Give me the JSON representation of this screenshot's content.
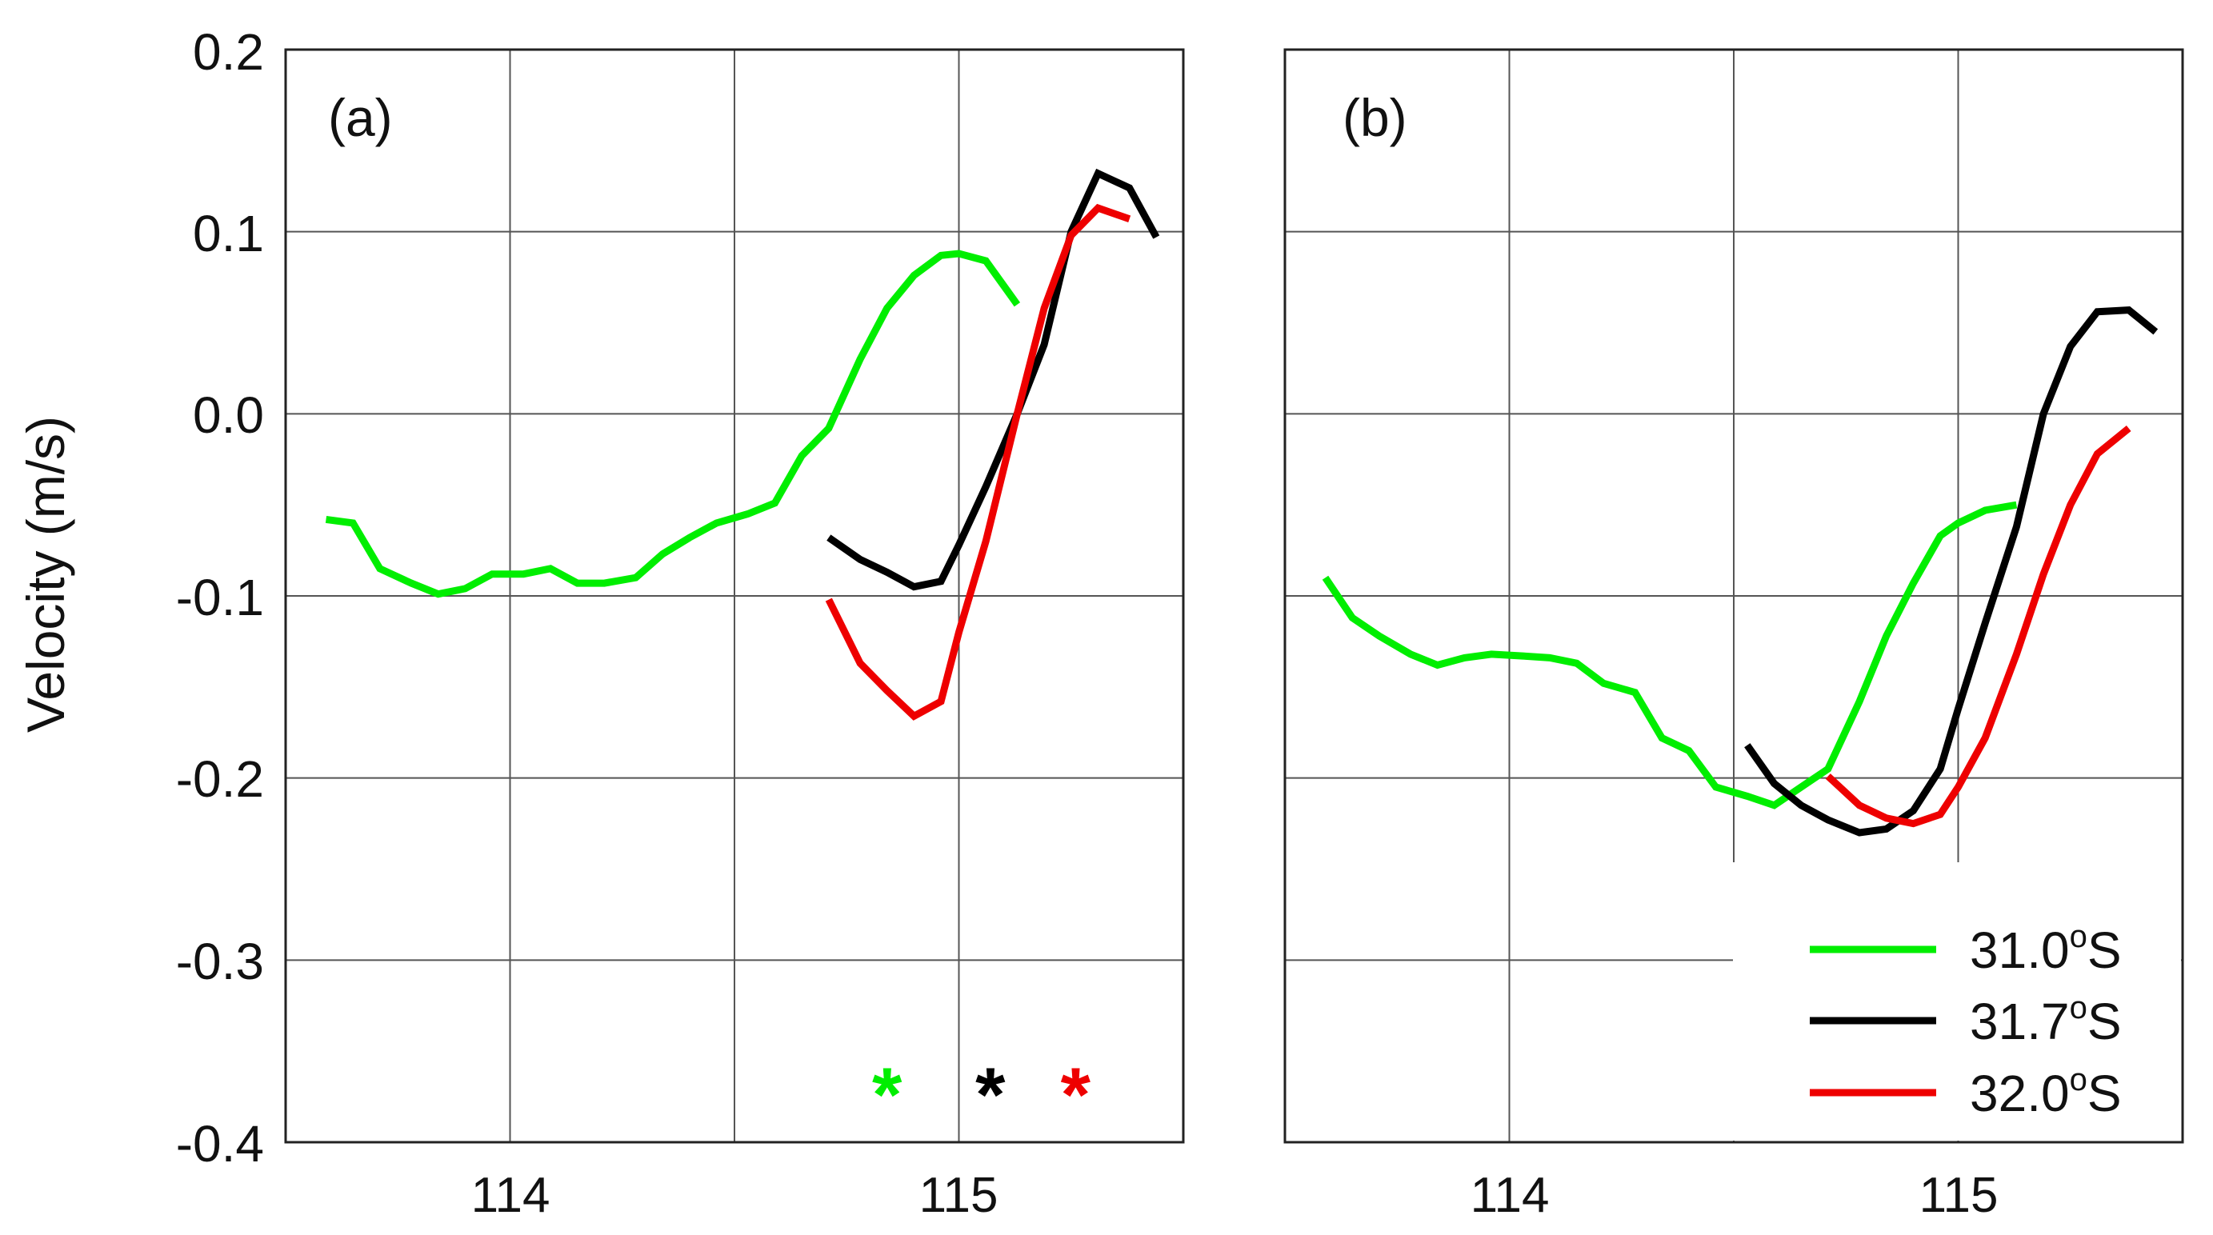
{
  "figure": {
    "ylabel": "Velocity (m/s)",
    "y_ticks": [
      "0.2",
      "0.1",
      "0.0",
      "-0.1",
      "-0.2",
      "-0.3",
      "-0.4"
    ],
    "legend": {
      "placement": "bottom-right of panel (b)",
      "entries": [
        {
          "label_main": "31.0",
          "label_sup": "o",
          "label_end": "S",
          "color": "#00ee00"
        },
        {
          "label_main": "31.7",
          "label_sup": "o",
          "label_end": "S",
          "color": "#000000"
        },
        {
          "label_main": "32.0",
          "label_sup": "o",
          "label_end": "S",
          "color": "#ee0000"
        }
      ]
    }
  },
  "chart_data": [
    {
      "type": "line",
      "panel_label": "(a)",
      "xlim": [
        113.5,
        115.5
      ],
      "ylim": [
        -0.4,
        0.2
      ],
      "x_ticks": [
        114,
        115
      ],
      "x_tick_labels": [
        "114",
        "115"
      ],
      "y_ticks": [
        0.2,
        0.1,
        0.0,
        -0.1,
        -0.2,
        -0.3,
        -0.4
      ],
      "grid": true,
      "series": [
        {
          "name": "31.0oS",
          "color": "#00ee00",
          "x": [
            113.59,
            113.65,
            113.71,
            113.78,
            113.84,
            113.9,
            113.96,
            114.03,
            114.09,
            114.15,
            114.21,
            114.28,
            114.34,
            114.4,
            114.46,
            114.53,
            114.59,
            114.65,
            114.71,
            114.78,
            114.84,
            114.9,
            114.96,
            115.0,
            115.06,
            115.13
          ],
          "y": [
            -0.058,
            -0.06,
            -0.085,
            -0.093,
            -0.099,
            -0.096,
            -0.088,
            -0.088,
            -0.085,
            -0.093,
            -0.093,
            -0.09,
            -0.077,
            -0.068,
            -0.06,
            -0.055,
            -0.049,
            -0.023,
            -0.008,
            0.03,
            0.058,
            0.076,
            0.087,
            0.088,
            0.084,
            0.06
          ]
        },
        {
          "name": "31.7oS",
          "color": "#000000",
          "x": [
            114.71,
            114.78,
            114.84,
            114.9,
            114.96,
            115.0,
            115.06,
            115.13,
            115.19,
            115.25,
            115.31,
            115.38,
            115.44
          ],
          "y": [
            -0.068,
            -0.08,
            -0.087,
            -0.095,
            -0.092,
            -0.072,
            -0.04,
            0.0,
            0.038,
            0.1,
            0.132,
            0.124,
            0.097
          ]
        },
        {
          "name": "32.0oS",
          "color": "#ee0000",
          "x": [
            114.71,
            114.78,
            114.84,
            114.9,
            114.96,
            115.0,
            115.06,
            115.13,
            115.19,
            115.25,
            115.31,
            115.38
          ],
          "y": [
            -0.102,
            -0.137,
            -0.152,
            -0.166,
            -0.158,
            -0.12,
            -0.07,
            0.0,
            0.058,
            0.098,
            0.113,
            0.107
          ]
        }
      ],
      "markers": [
        {
          "symbol": "*",
          "x": 114.84,
          "y": -0.37,
          "color": "#00ee00"
        },
        {
          "symbol": "*",
          "x": 115.07,
          "y": -0.37,
          "color": "#000000"
        },
        {
          "symbol": "*",
          "x": 115.26,
          "y": -0.37,
          "color": "#ee0000"
        }
      ]
    },
    {
      "type": "line",
      "panel_label": "(b)",
      "xlim": [
        113.5,
        115.5
      ],
      "ylim": [
        -0.4,
        0.2
      ],
      "x_ticks": [
        114,
        115
      ],
      "x_tick_labels": [
        "114",
        "115"
      ],
      "y_ticks": [
        0.2,
        0.1,
        0.0,
        -0.1,
        -0.2,
        -0.3,
        -0.4
      ],
      "grid": true,
      "series": [
        {
          "name": "31.0oS",
          "color": "#00ee00",
          "x": [
            113.59,
            113.65,
            113.71,
            113.78,
            113.84,
            113.9,
            113.96,
            114.03,
            114.09,
            114.15,
            114.21,
            114.28,
            114.34,
            114.4,
            114.46,
            114.53,
            114.59,
            114.65,
            114.71,
            114.78,
            114.84,
            114.9,
            114.96,
            115.0,
            115.06,
            115.13
          ],
          "y": [
            -0.09,
            -0.112,
            -0.122,
            -0.132,
            -0.138,
            -0.134,
            -0.132,
            -0.133,
            -0.134,
            -0.137,
            -0.148,
            -0.153,
            -0.178,
            -0.185,
            -0.205,
            -0.21,
            -0.215,
            -0.205,
            -0.195,
            -0.158,
            -0.122,
            -0.093,
            -0.067,
            -0.06,
            -0.053,
            -0.05
          ]
        },
        {
          "name": "31.7oS",
          "color": "#000000",
          "x": [
            114.53,
            114.59,
            114.65,
            114.71,
            114.78,
            114.84,
            114.9,
            114.96,
            115.0,
            115.06,
            115.13,
            115.19,
            115.25,
            115.31,
            115.38,
            115.44
          ],
          "y": [
            -0.182,
            -0.203,
            -0.215,
            -0.223,
            -0.23,
            -0.228,
            -0.218,
            -0.195,
            -0.162,
            -0.115,
            -0.062,
            0.0,
            0.037,
            0.056,
            0.057,
            0.045
          ]
        },
        {
          "name": "32.0oS",
          "color": "#ee0000",
          "x": [
            114.71,
            114.78,
            114.84,
            114.9,
            114.96,
            115.0,
            115.06,
            115.13,
            115.19,
            115.25,
            115.31,
            115.38
          ],
          "y": [
            -0.199,
            -0.215,
            -0.222,
            -0.225,
            -0.22,
            -0.205,
            -0.178,
            -0.132,
            -0.088,
            -0.05,
            -0.022,
            -0.008
          ]
        }
      ]
    }
  ]
}
